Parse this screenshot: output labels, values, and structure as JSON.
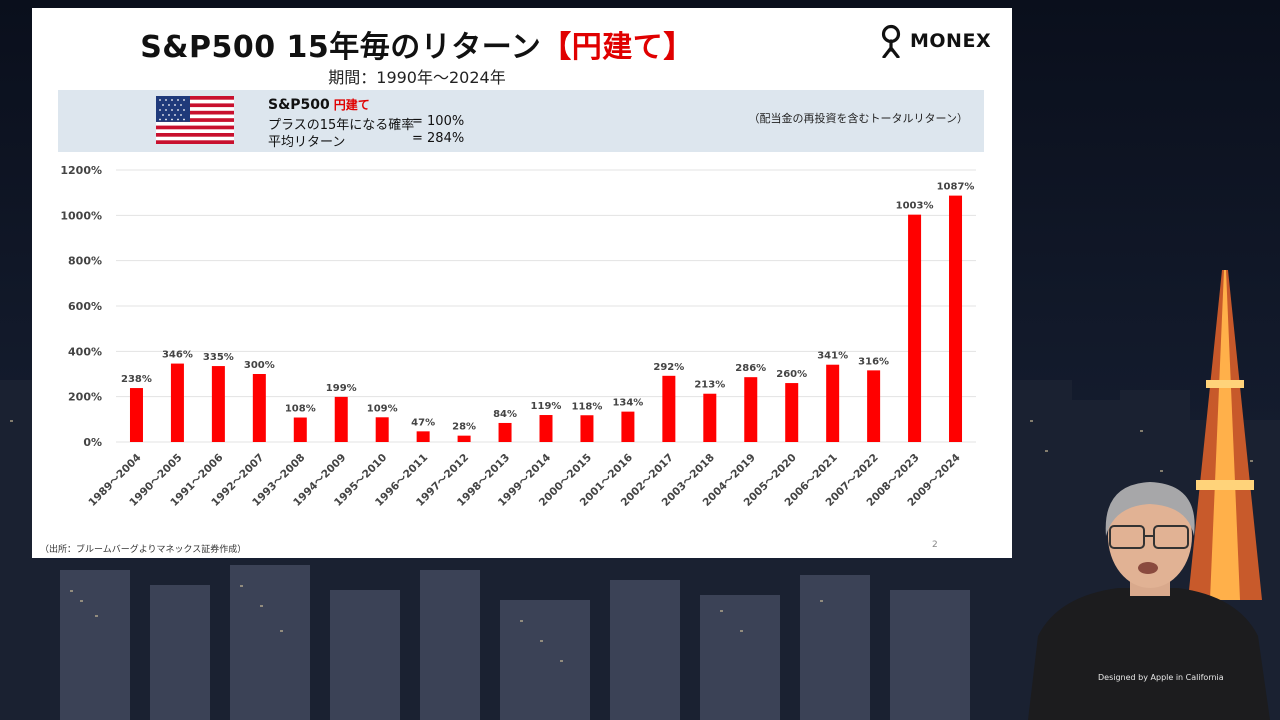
{
  "slide": {
    "title_main": "S&P500 15年毎のリターン",
    "title_accent": "【円建て】",
    "subtitle": "期間：1990年～2024年",
    "logo_text": "MONEX",
    "banner": {
      "name": "S&P500",
      "name_accent": "円建て",
      "line1_label": "プラスの15年になる確率",
      "line1_value": "= 100%",
      "line2_label": "平均リターン",
      "line2_value": "= 284%",
      "note": "（配当金の再投資を含むトータルリターン）",
      "flag_icon": "us-flag-icon"
    },
    "source": "（出所：ブルームバーグよりマネックス証券作成）",
    "page_number": "2"
  },
  "presenter": {
    "shirt_text": "Designed by Apple in California"
  },
  "colors": {
    "accent": "#e00000",
    "bar": "#ff0000",
    "banner_bg": "#dde6ee"
  },
  "chart_data": {
    "type": "bar",
    "categories": [
      "1989～2004",
      "1990～2005",
      "1991～2006",
      "1992～2007",
      "1993～2008",
      "1994～2009",
      "1995～2010",
      "1996～2011",
      "1997～2012",
      "1998～2013",
      "1999～2014",
      "2000～2015",
      "2001～2016",
      "2002～2017",
      "2003～2018",
      "2004～2019",
      "2005～2020",
      "2006～2021",
      "2007～2022",
      "2008～2023",
      "2009～2024"
    ],
    "values": [
      238,
      346,
      335,
      300,
      108,
      199,
      109,
      47,
      28,
      84,
      119,
      118,
      134,
      292,
      213,
      286,
      260,
      341,
      316,
      1003,
      1087
    ],
    "value_labels": [
      "238%",
      "346%",
      "335%",
      "300%",
      "108%",
      "199%",
      "109%",
      "47%",
      "28%",
      "84%",
      "119%",
      "118%",
      "134%",
      "292%",
      "213%",
      "286%",
      "260%",
      "341%",
      "316%",
      "1003%",
      "1087%"
    ],
    "yticks": [
      0,
      200,
      400,
      600,
      800,
      1000,
      1200
    ],
    "ytick_labels": [
      "0%",
      "200%",
      "400%",
      "600%",
      "800%",
      "1000%",
      "1200%"
    ],
    "ylim": [
      0,
      1200
    ],
    "grid": true,
    "legend": "none"
  }
}
